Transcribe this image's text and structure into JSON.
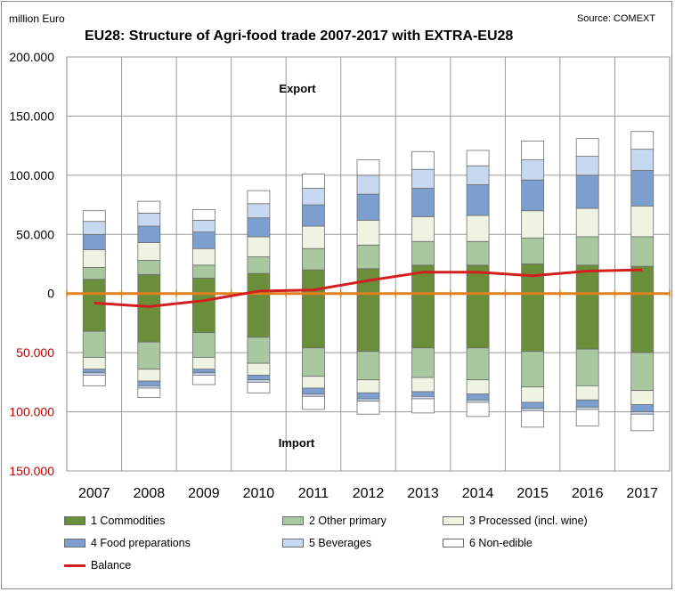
{
  "header": {
    "unit": "million Euro",
    "source": "Source: COMEXT",
    "title": "EU28: Structure of Agri-food trade 2007-2017 with EXTRA-EU28"
  },
  "chart_data": {
    "type": "bar",
    "stacked": true,
    "title": "EU28: Structure of Agri-food trade 2007-2017 with EXTRA-EU28",
    "ylabel": "million Euro",
    "ylim": [
      -150000,
      200000
    ],
    "yticks": [
      200000,
      150000,
      100000,
      50000,
      0,
      -50000,
      -100000,
      -150000
    ],
    "ytick_labels": [
      "200.000",
      "150.000",
      "100.000",
      "50.000",
      "0",
      "50.000",
      "100.000",
      "150.000"
    ],
    "grid": true,
    "legend_position": "bottom",
    "annotations": {
      "export": "Export",
      "import": "Import"
    },
    "categories": [
      "2007",
      "2008",
      "2009",
      "2010",
      "2011",
      "2012",
      "2013",
      "2014",
      "2015",
      "2016",
      "2017"
    ],
    "series": [
      {
        "name": "1 Commodities",
        "color": "#6b8e3a",
        "export": [
          12000,
          16000,
          13000,
          17000,
          20000,
          21000,
          24000,
          24000,
          25000,
          24000,
          23000
        ],
        "import": [
          -32000,
          -41000,
          -33000,
          -37000,
          -46000,
          -49000,
          -46000,
          -46000,
          -49000,
          -47000,
          -50000
        ]
      },
      {
        "name": "2 Other primary",
        "color": "#a9c8a0",
        "export": [
          10000,
          12000,
          11000,
          14000,
          18000,
          20000,
          20000,
          20000,
          22000,
          24000,
          25000
        ],
        "import": [
          -22000,
          -23000,
          -21000,
          -22000,
          -24000,
          -24000,
          -25000,
          -27000,
          -30000,
          -31000,
          -32000
        ]
      },
      {
        "name": "3 Processed (incl. wine)",
        "color": "#eef3e2",
        "export": [
          15000,
          15000,
          14000,
          17000,
          19000,
          21000,
          21000,
          22000,
          23000,
          24000,
          26000
        ],
        "import": [
          -10000,
          -10000,
          -10000,
          -10000,
          -10000,
          -11000,
          -12000,
          -12000,
          -13000,
          -12000,
          -12000
        ]
      },
      {
        "name": "4 Food preparations",
        "color": "#7d9fd0",
        "export": [
          13000,
          14000,
          14000,
          16000,
          18000,
          22000,
          24000,
          26000,
          26000,
          28000,
          30000
        ],
        "import": [
          -3000,
          -4000,
          -3000,
          -4000,
          -5000,
          -5000,
          -4000,
          -5000,
          -5000,
          -6000,
          -6000
        ]
      },
      {
        "name": "5 Beverages",
        "color": "#c7d8f1",
        "export": [
          11000,
          11000,
          10000,
          12000,
          14000,
          16000,
          16000,
          16000,
          17000,
          16000,
          18000
        ],
        "import": [
          -2000,
          -2000,
          -2000,
          -2000,
          -2000,
          -2000,
          -2000,
          -2000,
          -2000,
          -2000,
          -2000
        ]
      },
      {
        "name": "6 Non-edible",
        "color": "#ffffff",
        "export": [
          9000,
          10000,
          9000,
          11000,
          12000,
          13000,
          15000,
          13000,
          16000,
          15000,
          15000
        ],
        "import": [
          -9000,
          -8000,
          -8000,
          -9000,
          -11000,
          -11000,
          -12000,
          -12000,
          -14000,
          -14000,
          -14000
        ]
      }
    ],
    "balance": {
      "name": "Balance",
      "color": "#d21f1f",
      "values": [
        -8000,
        -11000,
        -6000,
        2000,
        3000,
        11000,
        18000,
        18000,
        15000,
        19000,
        20000
      ]
    }
  }
}
